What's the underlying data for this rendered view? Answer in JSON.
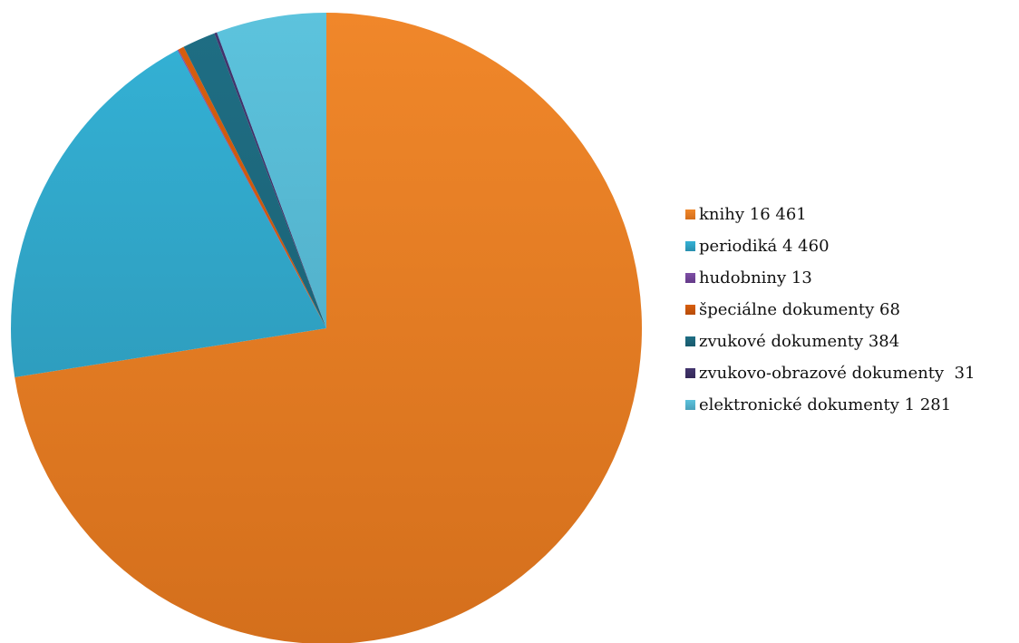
{
  "chart_data": {
    "type": "pie",
    "title": "",
    "legend_position": "right",
    "start_angle_deg": 0,
    "direction": "clockwise",
    "slices": [
      {
        "label": "knihy 16 461",
        "value": 16461,
        "color": "#F0872A",
        "color_dark": "#D46F1C"
      },
      {
        "label": "periodiká 4 460",
        "value": 4460,
        "color": "#34B2D6",
        "color_dark": "#2A8FAE"
      },
      {
        "label": "hudobniny 13",
        "value": 13,
        "color": "#7E4FA6",
        "color_dark": "#643A88"
      },
      {
        "label": "špeciálne dokumenty 68",
        "value": 68,
        "color": "#D85E0E",
        "color_dark": "#B64C09"
      },
      {
        "label": "zvukové dokumenty 384",
        "value": 384,
        "color": "#1F6E84",
        "color_dark": "#185A6C"
      },
      {
        "label": "zvukovo-obrazové dokumenty  31",
        "value": 31,
        "color": "#43356E",
        "color_dark": "#352A58"
      },
      {
        "label": "elektronické dokumenty 1 281",
        "value": 1281,
        "color": "#5CC3DD",
        "color_dark": "#4AA0BA"
      }
    ]
  }
}
